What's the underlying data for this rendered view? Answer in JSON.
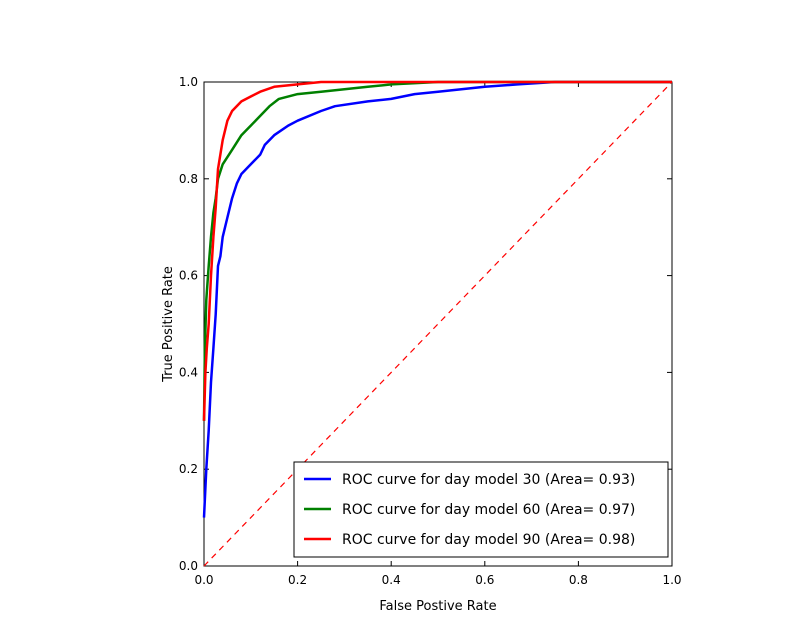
{
  "chart_data": {
    "type": "line",
    "title": "",
    "xlabel": "False Postive Rate",
    "ylabel": "True Positive Rate",
    "xlim": [
      0,
      1
    ],
    "ylim": [
      0,
      1
    ],
    "x_ticks": [
      "0.0",
      "0.2",
      "0.4",
      "0.6",
      "0.8",
      "1.0"
    ],
    "y_ticks": [
      "0.0",
      "0.2",
      "0.4",
      "0.6",
      "0.8",
      "1.0"
    ],
    "grid": false,
    "legend_placement": "lower-right",
    "series": [
      {
        "name": "ROC curve for day model 30 (Area= 0.93)",
        "color": "#0000ff",
        "x": [
          0,
          0.005,
          0.01,
          0.015,
          0.02,
          0.025,
          0.03,
          0.035,
          0.04,
          0.05,
          0.06,
          0.07,
          0.08,
          0.1,
          0.12,
          0.13,
          0.15,
          0.18,
          0.2,
          0.25,
          0.28,
          0.35,
          0.4,
          0.45,
          0.5,
          0.55,
          0.6,
          0.67,
          0.75,
          1.0
        ],
        "y": [
          0.1,
          0.2,
          0.28,
          0.38,
          0.45,
          0.52,
          0.62,
          0.64,
          0.68,
          0.72,
          0.76,
          0.79,
          0.81,
          0.83,
          0.85,
          0.87,
          0.89,
          0.91,
          0.92,
          0.94,
          0.95,
          0.96,
          0.965,
          0.975,
          0.98,
          0.985,
          0.99,
          0.995,
          1.0,
          1.0
        ]
      },
      {
        "name": "ROC curve for day model 60 (Area= 0.97)",
        "color": "#008000",
        "x": [
          0,
          0.002,
          0.005,
          0.01,
          0.015,
          0.02,
          0.025,
          0.03,
          0.04,
          0.06,
          0.08,
          0.1,
          0.12,
          0.14,
          0.16,
          0.2,
          0.25,
          0.3,
          0.35,
          0.4,
          0.5,
          1.0
        ],
        "y": [
          0.3,
          0.45,
          0.55,
          0.62,
          0.68,
          0.73,
          0.76,
          0.8,
          0.83,
          0.86,
          0.89,
          0.91,
          0.93,
          0.95,
          0.965,
          0.975,
          0.98,
          0.985,
          0.99,
          0.995,
          1.0,
          1.0
        ]
      },
      {
        "name": "ROC curve for day model 90 (Area= 0.98)",
        "color": "#ff0000",
        "x": [
          0,
          0.003,
          0.006,
          0.01,
          0.015,
          0.02,
          0.025,
          0.03,
          0.04,
          0.05,
          0.06,
          0.08,
          0.1,
          0.12,
          0.15,
          0.2,
          0.25,
          0.3,
          1.0
        ],
        "y": [
          0.3,
          0.4,
          0.45,
          0.5,
          0.6,
          0.68,
          0.74,
          0.82,
          0.88,
          0.92,
          0.94,
          0.96,
          0.97,
          0.98,
          0.99,
          0.995,
          1.0,
          1.0,
          1.0
        ]
      },
      {
        "color": "#ff0000",
        "dashed": true,
        "x": [
          0,
          1
        ],
        "y": [
          0,
          1
        ]
      }
    ]
  }
}
